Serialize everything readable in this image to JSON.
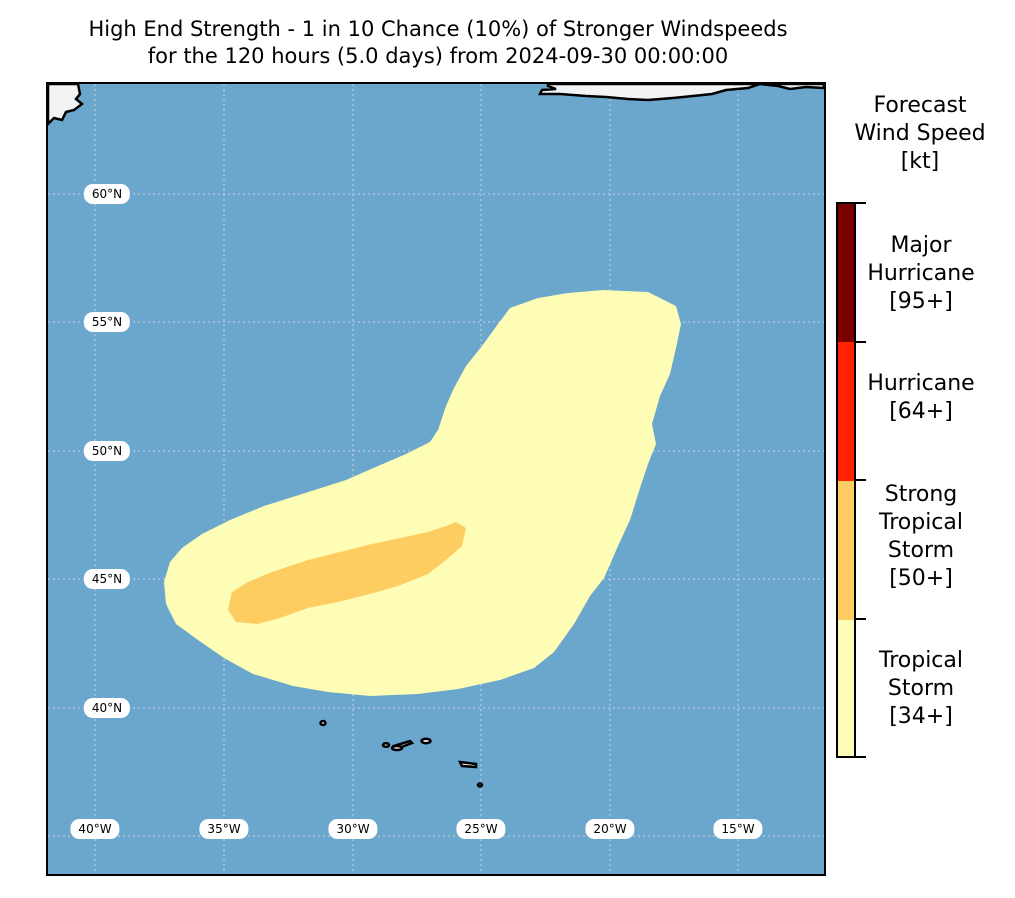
{
  "title": {
    "line1": "High End Strength - 1 in 10 Chance (10%) of Stronger Windspeeds",
    "line2": "for the 120 hours (5.0 days) from 2024-09-30 00:00:00"
  },
  "map": {
    "lat_labels": [
      "60°N",
      "55°N",
      "50°N",
      "45°N",
      "40°N"
    ],
    "lon_labels": [
      "40°W",
      "35°W",
      "30°W",
      "25°W",
      "20°W",
      "15°W"
    ],
    "colors": {
      "ocean": "#6ba6cd",
      "land": "#f2f3f5",
      "tropical_storm": "#fefdb5",
      "strong_tropical_storm": "#fecd61",
      "hurricane": "#ff2200",
      "major_hurricane": "#7a0000"
    }
  },
  "legend": {
    "title_lines": [
      "Forecast",
      "Wind Speed",
      "[kt]"
    ],
    "categories": [
      {
        "lines": [
          "Major",
          "Hurricane",
          "[95+]"
        ],
        "color": "#7a0000"
      },
      {
        "lines": [
          "Hurricane",
          "[64+]"
        ],
        "color": "#ff2200"
      },
      {
        "lines": [
          "Strong",
          "Tropical",
          "Storm",
          "[50+]"
        ],
        "color": "#fecd61"
      },
      {
        "lines": [
          "Tropical",
          "Storm",
          "[34+]"
        ],
        "color": "#fefdb5"
      }
    ]
  }
}
